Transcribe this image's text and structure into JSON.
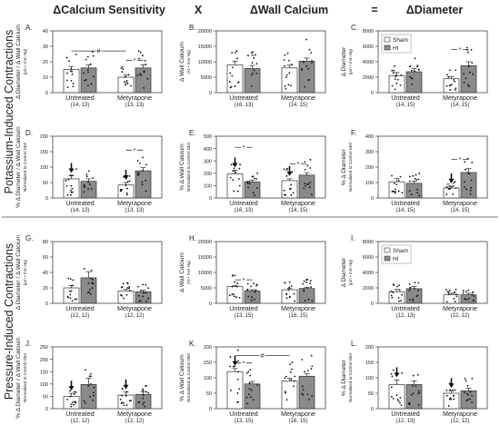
{
  "header": {
    "col1": "ΔCalcium Sensitivity",
    "op1": "X",
    "col2": "ΔWall Calcium",
    "op2": "=",
    "col3": "ΔDiameter"
  },
  "rows": {
    "potassium": "Potassium-Induced Contractions",
    "pressure": "Pressure-Induced Contractions"
  },
  "legend": {
    "sham": "Sham",
    "hi": "HI"
  },
  "colors": {
    "sham": "#ffffff",
    "hi": "#8a8a8a",
    "dots": "#111111",
    "sig": "#333333"
  },
  "chart_data": [
    {
      "panel": "A",
      "type": "bar",
      "ylabel": "Δ Diameter / Δ Wall Calcium",
      "yunit": "(μm • mm Hg)",
      "ylim": [
        0,
        40
      ],
      "yticks": [
        "0",
        "10",
        "20",
        "30",
        "40"
      ],
      "groups": [
        {
          "label": "Untreated",
          "n": "(14, 13)"
        },
        {
          "label": "Metyrapone",
          "n": "(13, 13)"
        }
      ],
      "series": [
        {
          "name": "Sham",
          "values": [
            15,
            10
          ]
        },
        {
          "name": "HI",
          "values": [
            16,
            16
          ]
        }
      ],
      "errors": [
        [
          2,
          1.5
        ],
        [
          2,
          2
        ]
      ],
      "sig": [
        {
          "from": [
            0,
            0
          ],
          "to": [
            1,
            0
          ],
          "y": 27,
          "mark": "#"
        },
        {
          "from": [
            1,
            0
          ],
          "to": [
            1,
            1
          ],
          "y": 21,
          "mark": "*"
        }
      ]
    },
    {
      "panel": "B",
      "type": "bar",
      "ylabel": "Δ Wall Calcium",
      "yunit": "(% • mm Hg)",
      "ylim": [
        0,
        20000
      ],
      "yticks": [
        "0",
        "5000",
        "10000",
        "15000",
        "20000"
      ],
      "groups": [
        {
          "label": "Untreated",
          "n": "(16, 13)"
        },
        {
          "label": "Metyrapone",
          "n": "(14, 15)"
        }
      ],
      "series": [
        {
          "name": "Sham",
          "values": [
            9000,
            8000
          ]
        },
        {
          "name": "HI",
          "values": [
            7800,
            10200
          ]
        }
      ],
      "errors": [
        [
          1200,
          900
        ],
        [
          1000,
          1000
        ]
      ],
      "sig": []
    },
    {
      "panel": "C",
      "type": "bar",
      "ylabel": "Δ Diameter",
      "yunit": "(μm • mm Hg)",
      "ylim": [
        0,
        8000
      ],
      "yticks": [
        "0",
        "2000",
        "4000",
        "6000",
        "8000"
      ],
      "groups": [
        {
          "label": "Untreated",
          "n": "(14, 15)"
        },
        {
          "label": "Metyrapone",
          "n": "(14, 15)"
        }
      ],
      "series": [
        {
          "name": "Sham",
          "values": [
            2200,
            1800
          ]
        },
        {
          "name": "HI",
          "values": [
            2700,
            3500
          ]
        }
      ],
      "errors": [
        [
          400,
          300
        ],
        [
          400,
          500
        ]
      ],
      "sig": [
        {
          "from": [
            1,
            0
          ],
          "to": [
            1,
            1
          ],
          "y": 5600,
          "mark": "*"
        }
      ],
      "legend": true
    },
    {
      "panel": "D",
      "type": "bar",
      "ylabel": "% Δ Diameter / Δ Wall Calcium",
      "yunit": "Normalized to Control Diet",
      "ylim": [
        0,
        200
      ],
      "yticks": [
        "0",
        "50",
        "100",
        "150",
        "200"
      ],
      "groups": [
        {
          "label": "Untreated",
          "n": "(14, 13)"
        },
        {
          "label": "Metyrapone",
          "n": "(13, 13)"
        }
      ],
      "series": [
        {
          "name": "Sham",
          "values": [
            62,
            42
          ]
        },
        {
          "name": "HI",
          "values": [
            54,
            88
          ]
        }
      ],
      "errors": [
        [
          10,
          8
        ],
        [
          8,
          10
        ]
      ],
      "sig": [
        {
          "from": [
            1,
            0
          ],
          "to": [
            1,
            1
          ],
          "y": 155,
          "mark": "*"
        }
      ],
      "arrows": [
        [
          0,
          0
        ],
        [
          1,
          0
        ]
      ]
    },
    {
      "panel": "E",
      "type": "bar",
      "ylabel": "% Δ Wall Calcium",
      "yunit": "Normalized to Control Diet",
      "ylim": [
        0,
        500
      ],
      "yticks": [
        "0",
        "100",
        "200",
        "300",
        "400",
        "500"
      ],
      "groups": [
        {
          "label": "Untreated",
          "n": "(16, 13)"
        },
        {
          "label": "Metyrapone",
          "n": "(14, 15)"
        }
      ],
      "series": [
        {
          "name": "Sham",
          "values": [
            195,
            140
          ]
        },
        {
          "name": "HI",
          "values": [
            130,
            185
          ]
        }
      ],
      "errors": [
        [
          30,
          15
        ],
        [
          15,
          20
        ]
      ],
      "sig": [
        {
          "from": [
            0,
            0
          ],
          "to": [
            0,
            1
          ],
          "y": 410,
          "mark": "*"
        },
        {
          "from": [
            1,
            0
          ],
          "to": [
            1,
            1
          ],
          "y": 275,
          "mark": "*"
        }
      ],
      "arrows": [
        [
          0,
          0
        ],
        [
          1,
          0
        ]
      ]
    },
    {
      "panel": "F",
      "type": "bar",
      "ylabel": "% Δ Diameter",
      "yunit": "Normalized to Control Diet",
      "ylim": [
        0,
        400
      ],
      "yticks": [
        "0",
        "100",
        "200",
        "300",
        "400"
      ],
      "groups": [
        {
          "label": "Untreated",
          "n": "(14, 15)"
        },
        {
          "label": "Metyrapone",
          "n": "(14, 15)"
        }
      ],
      "series": [
        {
          "name": "Sham",
          "values": [
            105,
            65
          ]
        },
        {
          "name": "HI",
          "values": [
            95,
            165
          ]
        }
      ],
      "errors": [
        [
          20,
          12
        ],
        [
          15,
          25
        ]
      ],
      "sig": [
        {
          "from": [
            1,
            0
          ],
          "to": [
            1,
            1
          ],
          "y": 250,
          "mark": "*"
        }
      ],
      "arrows": [
        [
          1,
          0
        ]
      ]
    },
    {
      "panel": "G",
      "type": "bar",
      "ylabel": "Δ Diameter / Δ Wall Calcium",
      "yunit": "(μm • mm Hg)",
      "ylim": [
        0,
        80
      ],
      "yticks": [
        "0",
        "20",
        "40",
        "60",
        "80"
      ],
      "groups": [
        {
          "label": "Untreated",
          "n": "(12, 12)"
        },
        {
          "label": "Metyrapone",
          "n": "(12, 12)"
        }
      ],
      "series": [
        {
          "name": "Sham",
          "values": [
            20,
            16
          ]
        },
        {
          "name": "HI",
          "values": [
            33,
            15
          ]
        }
      ],
      "errors": [
        [
          3,
          2
        ],
        [
          8,
          2
        ]
      ],
      "sig": []
    },
    {
      "panel": "H",
      "type": "bar",
      "ylabel": "Δ Wall Calcium",
      "yunit": "(% • mm Hg)",
      "ylim": [
        0,
        20000
      ],
      "yticks": [
        "0",
        "5000",
        "10000",
        "15000",
        "20000"
      ],
      "groups": [
        {
          "label": "Untreated",
          "n": "(13, 15)"
        },
        {
          "label": "Metyrapone",
          "n": "(16, 15)"
        }
      ],
      "series": [
        {
          "name": "Sham",
          "values": [
            5400,
            4400
          ]
        },
        {
          "name": "HI",
          "values": [
            4000,
            4800
          ]
        }
      ],
      "errors": [
        [
          400,
          500
        ],
        [
          400,
          400
        ]
      ],
      "sig": [
        {
          "from": [
            0,
            0
          ],
          "to": [
            0,
            1
          ],
          "y": 7600,
          "mark": "*"
        }
      ]
    },
    {
      "panel": "I",
      "type": "bar",
      "ylabel": "Δ Diameter",
      "yunit": "(μm • mm Hg)",
      "ylim": [
        0,
        8000
      ],
      "yticks": [
        "0",
        "2000",
        "4000",
        "6000",
        "8000"
      ],
      "groups": [
        {
          "label": "Untreated",
          "n": "(12, 13)"
        },
        {
          "label": "Metyrapone",
          "n": "(12, 12)"
        }
      ],
      "series": [
        {
          "name": "Sham",
          "values": [
            1500,
            1100
          ]
        },
        {
          "name": "HI",
          "values": [
            1900,
            1100
          ]
        }
      ],
      "errors": [
        [
          300,
          200
        ],
        [
          300,
          200
        ]
      ],
      "sig": [],
      "legend": true
    },
    {
      "panel": "J",
      "type": "bar",
      "ylabel": "% Δ Diameter / Δ Wall Calcium",
      "yunit": "Normalized to Control Diet",
      "ylim": [
        0,
        250
      ],
      "yticks": [
        "0",
        "50",
        "100",
        "150",
        "200",
        "250"
      ],
      "groups": [
        {
          "label": "Untreated",
          "n": "(12, 12)"
        },
        {
          "label": "Metyrapone",
          "n": "(12, 12)"
        }
      ],
      "series": [
        {
          "name": "Sham",
          "values": [
            50,
            55
          ]
        },
        {
          "name": "HI",
          "values": [
            98,
            58
          ]
        }
      ],
      "errors": [
        [
          12,
          12
        ],
        [
          25,
          10
        ]
      ],
      "sig": [],
      "arrows": [
        [
          0,
          0
        ],
        [
          1,
          0
        ]
      ]
    },
    {
      "panel": "K",
      "type": "bar",
      "ylabel": "% Δ Wall Calcium",
      "yunit": "Normalized to Control Diet",
      "ylim": [
        0,
        200
      ],
      "yticks": [
        "0",
        "50",
        "100",
        "150",
        "200"
      ],
      "groups": [
        {
          "label": "Untreated",
          "n": "(13, 15)"
        },
        {
          "label": "Metyrapone",
          "n": "(16, 15)"
        }
      ],
      "series": [
        {
          "name": "Sham",
          "values": [
            120,
            90
          ]
        },
        {
          "name": "HI",
          "values": [
            80,
            105
          ]
        }
      ],
      "errors": [
        [
          10,
          8
        ],
        [
          8,
          8
        ]
      ],
      "sig": [
        {
          "from": [
            0,
            0
          ],
          "to": [
            0,
            1
          ],
          "y": 148,
          "mark": "*"
        },
        {
          "from": [
            0,
            0
          ],
          "to": [
            1,
            0
          ],
          "y": 172,
          "mark": "#"
        }
      ],
      "arrows": [
        [
          0,
          0
        ]
      ]
    },
    {
      "panel": "L",
      "type": "bar",
      "ylabel": "% Δ Diameter",
      "yunit": "Normalized to Control Diet",
      "ylim": [
        0,
        200
      ],
      "yticks": [
        "0",
        "50",
        "100",
        "150",
        "200"
      ],
      "groups": [
        {
          "label": "Untreated",
          "n": "(12, 13)"
        },
        {
          "label": "Metyrapone",
          "n": "(12, 12)"
        }
      ],
      "series": [
        {
          "name": "Sham",
          "values": [
            78,
            50
          ]
        },
        {
          "name": "HI",
          "values": [
            78,
            58
          ]
        }
      ],
      "errors": [
        [
          15,
          8
        ],
        [
          12,
          8
        ]
      ],
      "sig": [],
      "arrows": [
        [
          0,
          0
        ],
        [
          1,
          0
        ]
      ]
    }
  ]
}
